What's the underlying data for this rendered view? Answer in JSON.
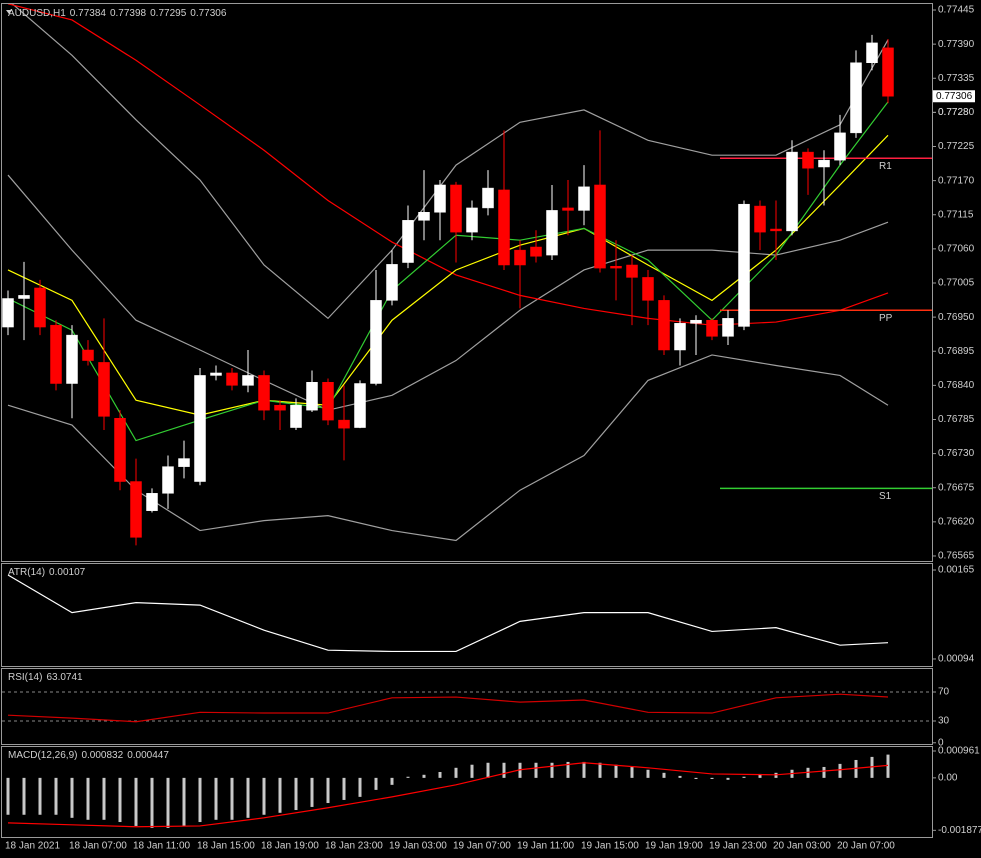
{
  "chart_data": [
    {
      "type": "candlestick",
      "title": "AUDUSD,H1",
      "categories": [
        "18 Jan 2021",
        null,
        null,
        null,
        "18 Jan 07:00",
        null,
        null,
        null,
        "18 Jan 11:00",
        null,
        null,
        null,
        "18 Jan 15:00",
        null,
        null,
        null,
        "18 Jan 19:00",
        null,
        null,
        null,
        "18 Jan 23:00",
        null,
        null,
        null,
        "19 Jan 03:00",
        null,
        null,
        null,
        "19 Jan 07:00",
        null,
        null,
        null,
        "19 Jan 11:00",
        null,
        null,
        null,
        "19 Jan 15:00",
        null,
        null,
        null,
        "19 Jan 19:00",
        null,
        null,
        null,
        "19 Jan 23:00",
        null,
        null,
        null,
        "20 Jan 03:00",
        null,
        null,
        null,
        "20 Jan 07:00",
        null,
        null,
        null
      ],
      "open": [
        0.76934,
        0.7698,
        0.76997,
        0.76937,
        0.76843,
        0.76897,
        0.76877,
        0.76787,
        0.76685,
        0.76638,
        0.76666,
        0.76709,
        0.76685,
        0.76856,
        0.7686,
        0.7684,
        0.76856,
        0.76808,
        0.76772,
        0.768,
        0.76845,
        0.76784,
        0.76772,
        0.76843,
        0.76977,
        0.77038,
        0.77106,
        0.77119,
        0.77163,
        0.77087,
        0.77126,
        0.77155,
        0.77058,
        0.77063,
        0.7705,
        0.77126,
        0.77122,
        0.77163,
        0.77032,
        0.77034,
        0.77014,
        0.76977,
        0.76897,
        0.7694,
        0.76945,
        0.76919,
        0.76935,
        0.77129,
        0.77092,
        0.77089,
        0.77216,
        0.77192,
        0.77203,
        0.77247,
        0.7736,
        0.77384
      ],
      "high": [
        0.76993,
        0.77039,
        0.7701,
        0.76945,
        0.76937,
        0.76913,
        0.76948,
        0.768,
        0.76722,
        0.76674,
        0.76727,
        0.76751,
        0.76868,
        0.76872,
        0.76868,
        0.76897,
        0.76864,
        0.76816,
        0.76819,
        0.76864,
        0.76851,
        0.7684,
        0.76848,
        0.77026,
        0.77058,
        0.7713,
        0.77187,
        0.77171,
        0.77168,
        0.77138,
        0.77187,
        0.77251,
        0.77074,
        0.7709,
        0.77163,
        0.77171,
        0.77195,
        0.77251,
        0.77074,
        0.7705,
        0.77026,
        0.76985,
        0.76948,
        0.76953,
        0.76948,
        0.76961,
        0.77138,
        0.77138,
        0.77138,
        0.77235,
        0.77222,
        0.77219,
        0.77276,
        0.7738,
        0.77405,
        0.77398
      ],
      "low": [
        0.76921,
        0.76913,
        0.76921,
        0.76832,
        0.76787,
        0.76872,
        0.76768,
        0.76671,
        0.76582,
        0.76635,
        0.76641,
        0.7669,
        0.76679,
        0.76848,
        0.76832,
        0.76829,
        0.76784,
        0.76768,
        0.76768,
        0.76797,
        0.76776,
        0.76719,
        0.76771,
        0.7684,
        0.76969,
        0.77029,
        0.77074,
        0.77074,
        0.77038,
        0.77074,
        0.77114,
        0.77026,
        0.76964,
        0.77038,
        0.77042,
        0.77082,
        0.77098,
        0.77022,
        0.76977,
        0.76937,
        0.76937,
        0.76889,
        0.76872,
        0.76889,
        0.76913,
        0.76905,
        0.76929,
        0.77058,
        0.77042,
        0.77082,
        0.77147,
        0.7713,
        0.77195,
        0.77239,
        0.77348,
        0.77295
      ],
      "close": [
        0.7698,
        0.76985,
        0.76934,
        0.76843,
        0.76921,
        0.7688,
        0.7679,
        0.76685,
        0.76595,
        0.76666,
        0.76709,
        0.76722,
        0.76856,
        0.7686,
        0.7684,
        0.76856,
        0.768,
        0.768,
        0.76808,
        0.76845,
        0.76784,
        0.76771,
        0.76843,
        0.76977,
        0.77035,
        0.77106,
        0.77119,
        0.77163,
        0.77087,
        0.77126,
        0.77158,
        0.77034,
        0.77034,
        0.77048,
        0.77122,
        0.77122,
        0.7716,
        0.77029,
        0.77029,
        0.77014,
        0.76977,
        0.76897,
        0.7694,
        0.76945,
        0.76919,
        0.76948,
        0.77132,
        0.77087,
        0.77089,
        0.77216,
        0.7719,
        0.77203,
        0.77247,
        0.7736,
        0.77392,
        0.77306
      ],
      "up_color": "#ffffff",
      "down_color": "#ff0000",
      "ylim": [
        0.765569,
        0.774547
      ],
      "yticks": [
        0.77445,
        {
          "value": 0.7739,
          "label": "0.77390"
        },
        0.77335,
        0.7728,
        {
          "value": 0.7728,
          "label": "0.77280"
        },
        0.77225,
        {
          "value": 0.7717,
          "label": "0.77170"
        },
        0.77115,
        {
          "value": 0.7706,
          "label": "0.77060"
        },
        0.77005,
        {
          "value": 0.7695,
          "label": "0.76950"
        },
        0.76895,
        {
          "value": 0.7684,
          "label": "0.76840"
        },
        0.76785,
        {
          "value": 0.7673,
          "label": "0.76730"
        },
        0.76675,
        {
          "value": 0.7662,
          "label": "0.76620"
        },
        0.76565
      ],
      "lines": [
        {
          "color": "#a0a0a0",
          "x": [
            0,
            4,
            8,
            12,
            16,
            20,
            24,
            28,
            32,
            36,
            40,
            44,
            48,
            52,
            55
          ],
          "values": [
            0.77461,
            0.77372,
            0.77268,
            0.77171,
            0.77034,
            0.76948,
            0.77058,
            0.77195,
            0.77264,
            0.77284,
            0.77235,
            0.77211,
            0.77211,
            0.7726,
            0.77397
          ]
        },
        {
          "color": "#a0a0a0",
          "x": [
            0,
            4,
            8,
            12,
            16,
            20,
            24,
            28,
            32,
            36,
            40,
            44,
            48,
            52,
            55
          ],
          "values": [
            0.77179,
            0.77058,
            0.76945,
            0.76897,
            0.76848,
            0.768,
            0.76824,
            0.7688,
            0.76961,
            0.77026,
            0.77058,
            0.77058,
            0.7705,
            0.77074,
            0.77103
          ]
        },
        {
          "color": "#a0a0a0",
          "x": [
            0,
            4,
            8,
            12,
            16,
            20,
            24,
            28,
            32,
            36,
            40,
            44,
            48,
            52,
            55
          ],
          "values": [
            0.76808,
            0.76776,
            0.76671,
            0.76606,
            0.76622,
            0.7663,
            0.76606,
            0.7659,
            0.76671,
            0.76727,
            0.76848,
            0.76889,
            0.76872,
            0.76856,
            0.76808
          ]
        },
        {
          "color": "#ff0000",
          "x": [
            0,
            4,
            8,
            12,
            16,
            20,
            24,
            28,
            32,
            36,
            40,
            44,
            48,
            52,
            55
          ],
          "values": [
            0.77455,
            0.77429,
            0.77364,
            0.77292,
            0.77219,
            0.77138,
            0.77071,
            0.77018,
            0.76985,
            0.76964,
            0.76948,
            0.76937,
            0.76942,
            0.76961,
            0.76989
          ]
        },
        {
          "color": "#ffff00",
          "x": [
            0,
            4,
            8,
            12,
            16,
            20,
            24,
            28,
            32,
            36,
            40,
            44,
            48,
            52,
            55
          ],
          "values": [
            0.77026,
            0.76977,
            0.76816,
            0.76792,
            0.76816,
            0.76808,
            0.76945,
            0.77026,
            0.77066,
            0.77093,
            0.77034,
            0.76977,
            0.77058,
            0.77163,
            0.77243
          ]
        },
        {
          "color": "#32cd32",
          "x": [
            0,
            4,
            8,
            12,
            16,
            20,
            24,
            28,
            32,
            36,
            40,
            44,
            48,
            52,
            55
          ],
          "values": [
            0.7698,
            0.76929,
            0.76751,
            0.76784,
            0.76816,
            0.76803,
            0.76993,
            0.77082,
            0.77074,
            0.77093,
            0.77042,
            0.76945,
            0.7705,
            0.77195,
            0.77297
          ]
        }
      ],
      "levels": [
        {
          "label": "R1",
          "value": 0.77206,
          "color": "#ff2040",
          "from": 45
        },
        {
          "label": "PP",
          "value": 0.76961,
          "color": "#ff3010",
          "from": 45
        },
        {
          "label": "S1",
          "value": 0.76674,
          "color": "#32cd32",
          "from": 45
        }
      ]
    },
    {
      "type": "line",
      "title": "ATR(14)",
      "color": "#ffffff",
      "x": [
        0,
        4,
        8,
        12,
        16,
        20,
        24,
        28,
        32,
        36,
        40,
        44,
        48,
        52,
        55
      ],
      "values": [
        0.00161,
        0.00131,
        0.00139,
        0.00137,
        0.00117,
        0.00101,
        0.001,
        0.001,
        0.00124,
        0.00131,
        0.00131,
        0.00116,
        0.00119,
        0.00105,
        0.00107
      ],
      "ylim": [
        0.000884,
        0.001706
      ],
      "yticks": [
        0.00165,
        0.00094
      ]
    },
    {
      "type": "line",
      "title": "RSI(14)",
      "color": "#d00000",
      "x": [
        0,
        4,
        8,
        12,
        16,
        20,
        24,
        28,
        32,
        36,
        40,
        44,
        48,
        52,
        55
      ],
      "values": [
        38,
        34,
        29,
        42,
        41,
        41,
        62,
        63,
        56,
        59,
        42,
        41,
        62,
        67,
        63.0741
      ],
      "ylim": [
        -1.7,
        103.1
      ],
      "yticks": [
        70,
        30,
        0
      ],
      "levels": [
        70,
        30
      ]
    },
    {
      "type": "macd",
      "title": "MACD(12,26,9)",
      "color": "#c8c8c8",
      "values": [
        -0.00132,
        -0.00132,
        -0.00132,
        -0.00132,
        -0.00143,
        -0.0015,
        -0.0015,
        -0.00158,
        -0.00172,
        -0.00179,
        -0.00179,
        -0.00172,
        -0.00158,
        -0.0015,
        -0.0015,
        -0.00143,
        -0.00132,
        -0.00125,
        -0.00115,
        -0.00104,
        -0.0009,
        -0.00079,
        -0.00068,
        -0.00043,
        -0.00025,
        4e-05,
        0.00011,
        0.00021,
        0.00036,
        0.00047,
        0.00054,
        0.00054,
        0.00054,
        0.00054,
        0.00054,
        0.00057,
        0.00057,
        0.00054,
        0.00047,
        0.00039,
        0.00029,
        0.00018,
        7e-05,
        -4e-05,
        -4e-05,
        -7e-05,
        4e-05,
        0.00014,
        0.00018,
        0.00029,
        0.00036,
        0.00039,
        0.0005,
        0.00064,
        0.00075,
        0.000832
      ],
      "signal": {
        "color": "#ff0000",
        "x": [
          0,
          4,
          8,
          12,
          16,
          20,
          24,
          28,
          32,
          36,
          40,
          44,
          48,
          52,
          55
        ],
        "values": [
          -0.00161,
          -0.00168,
          -0.00175,
          -0.00172,
          -0.00143,
          -0.00107,
          -0.00068,
          -0.00025,
          0.00029,
          0.00054,
          0.00036,
          0.00014,
          0.00011,
          0.00029,
          0.000447
        ]
      },
      "ylim": [
        -0.00208,
        0.00114
      ],
      "yticks": [
        0.000961,
        {
          "value": 0,
          "label": "0.00"
        },
        -0.001877
      ]
    }
  ]
}
